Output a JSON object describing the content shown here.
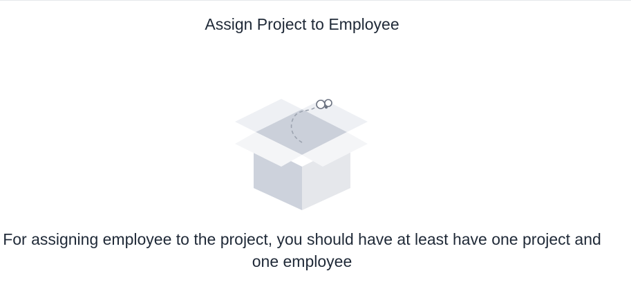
{
  "dialog": {
    "title": "Assign Project to Employee",
    "empty_state": {
      "illustration": "open-box-icon",
      "message": "For assigning employee to the project, you should have at least have one project and one employee"
    }
  },
  "colors": {
    "text": "#1f2937",
    "box_light": "#f3f4f6",
    "box_mid": "#e5e7eb",
    "box_dark": "#cbd0da",
    "line": "#9ca3af"
  }
}
